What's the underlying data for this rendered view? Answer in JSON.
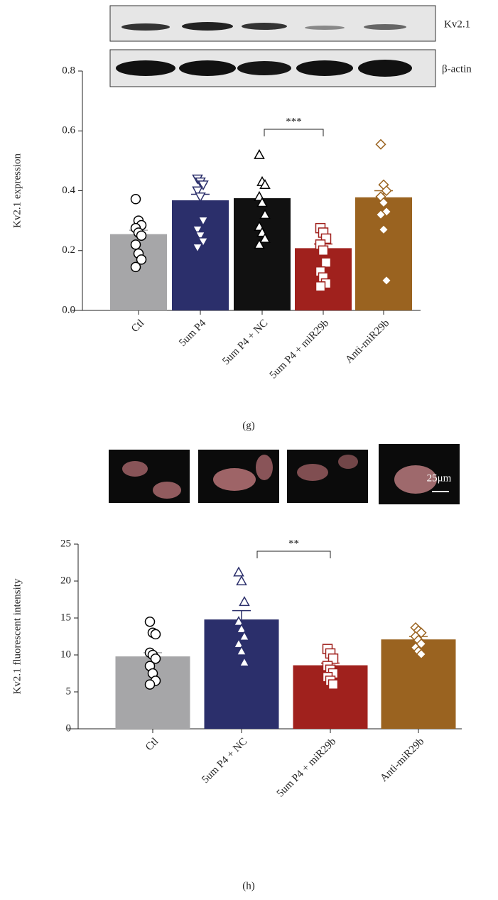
{
  "chart_data": [
    {
      "type": "bar",
      "panel": "(g)",
      "ylabel": "Kv2.1 expression",
      "blot_labels": [
        "Kv2.1",
        "β-actin"
      ],
      "categories": [
        "Ctl",
        "5um P4",
        "5um P4 + NC",
        "5um P4 + miR29b",
        "Anti-miR29b"
      ],
      "values": [
        0.255,
        0.368,
        0.375,
        0.208,
        0.378
      ],
      "errors": [
        0.013,
        0.02,
        0.023,
        0.014,
        0.022
      ],
      "colors": [
        "#a6a6a8",
        "#2b2f6b",
        "#111111",
        "#a0211d",
        "#9a6320"
      ],
      "markers": [
        "circle",
        "triangle-down",
        "triangle-up",
        "square",
        "diamond"
      ],
      "marker_colors": [
        "#000000",
        "#2b2f6b",
        "#000000",
        "#a0211d",
        "#9a6320"
      ],
      "points": [
        [
          0.372,
          0.3,
          0.285,
          0.275,
          0.26,
          0.25,
          0.22,
          0.19,
          0.17,
          0.145
        ],
        [
          0.44,
          0.43,
          0.42,
          0.4,
          0.38,
          0.3,
          0.27,
          0.25,
          0.23,
          0.21
        ],
        [
          0.52,
          0.43,
          0.42,
          0.38,
          0.36,
          0.32,
          0.28,
          0.26,
          0.24,
          0.22
        ],
        [
          0.275,
          0.26,
          0.24,
          0.22,
          0.2,
          0.16,
          0.13,
          0.11,
          0.09,
          0.08
        ],
        [
          0.555,
          0.42,
          0.4,
          0.38,
          0.36,
          0.33,
          0.32,
          0.27,
          0.1
        ]
      ],
      "significance": "***",
      "ylim": [
        0,
        0.8
      ],
      "yticks": [
        {
          "value": 0,
          "label": "0.0"
        },
        0.2,
        0.4,
        0.6,
        0.8
      ]
    },
    {
      "type": "bar",
      "panel": "(h)",
      "ylabel": "Kv2.1 fluorescent intensity",
      "scale_bar": "25μm",
      "categories": [
        "Ctl",
        "5um P4 + NC",
        "5um P4 + miR29b",
        "Anti-miR29b"
      ],
      "values": [
        9.8,
        14.8,
        8.6,
        12.1
      ],
      "errors": [
        0.5,
        1.2,
        0.3,
        0.4
      ],
      "colors": [
        "#a6a6a8",
        "#2b2f6b",
        "#a0211d",
        "#9a6320"
      ],
      "markers": [
        "circle",
        "triangle-up",
        "square",
        "diamond"
      ],
      "marker_colors": [
        "#000000",
        "#2b2f6b",
        "#a0211d",
        "#9a6320"
      ],
      "points": [
        [
          14.5,
          13.0,
          12.8,
          10.3,
          10.0,
          9.5,
          8.5,
          7.5,
          6.5,
          6.0
        ],
        [
          21.2,
          20.0,
          17.2,
          14.5,
          13.5,
          12.5,
          11.5,
          10.5,
          9.0
        ],
        [
          10.8,
          10.2,
          9.5,
          8.5,
          8.0,
          7.5,
          7.0,
          6.5,
          6.0
        ],
        [
          13.7,
          13.3,
          13.0,
          12.5,
          12.0,
          11.5,
          11.0,
          10.5,
          10.1
        ]
      ],
      "significance": "**",
      "ylim": [
        0,
        25
      ],
      "yticks": [
        0,
        5,
        10,
        15,
        20,
        25
      ]
    }
  ]
}
